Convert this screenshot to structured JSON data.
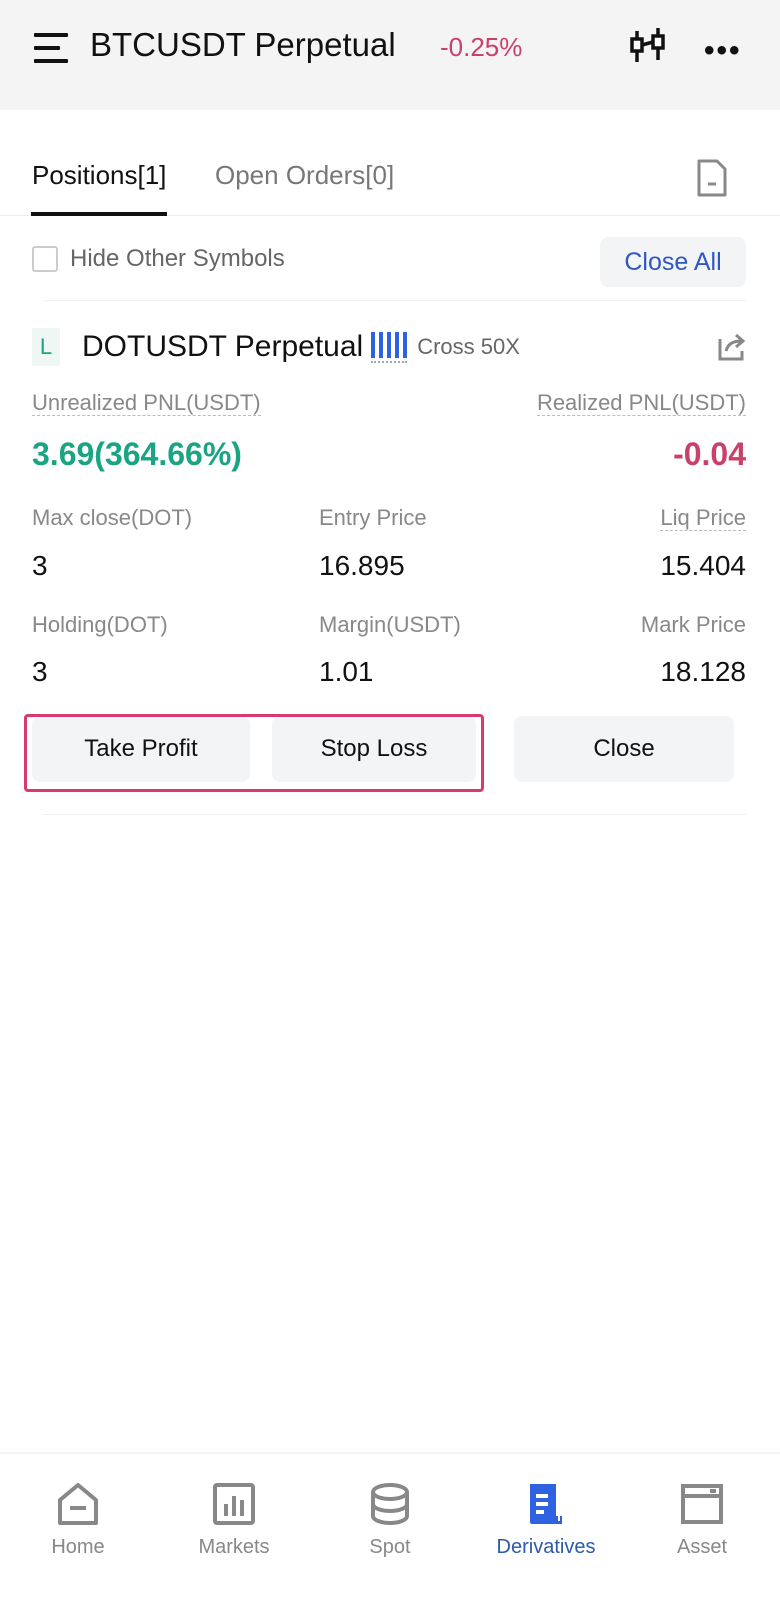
{
  "header": {
    "title": "BTCUSDT Perpetual",
    "change": "-0.25%",
    "icons": [
      "menu-icon",
      "candlestick-icon",
      "more-icon"
    ]
  },
  "tabs": [
    {
      "label": "Positions[1]",
      "active": true
    },
    {
      "label": "Open Orders[0]",
      "active": false
    }
  ],
  "filter": {
    "hide_other_symbols": "Hide Other Symbols",
    "checked": false,
    "close_all": "Close All"
  },
  "position": {
    "side": "L",
    "symbol": "DOTUSDT Perpetual",
    "margin_mode": "Cross 50X",
    "risk_level_bars": 5,
    "unrealized_pnl_label": "Unrealized PNL(USDT)",
    "unrealized_pnl": "3.69(364.66%)",
    "realized_pnl_label": "Realized PNL(USDT)",
    "realized_pnl": "-0.04",
    "max_close_label": "Max close(DOT)",
    "max_close": "3",
    "entry_price_label": "Entry Price",
    "entry_price": "16.895",
    "liq_price_label": "Liq Price",
    "liq_price": "15.404",
    "holding_label": "Holding(DOT)",
    "holding": "3",
    "margin_label": "Margin(USDT)",
    "margin": "1.01",
    "mark_price_label": "Mark Price",
    "mark_price": "18.128",
    "buttons": {
      "take_profit": "Take Profit",
      "stop_loss": "Stop Loss",
      "close": "Close"
    }
  },
  "colors": {
    "green": "#1aa483",
    "red": "#c9416a",
    "accent": "#2f62e0",
    "highlight": "#d63a72"
  },
  "nav": [
    {
      "label": "Home"
    },
    {
      "label": "Markets"
    },
    {
      "label": "Spot"
    },
    {
      "label": "Derivatives",
      "active": true
    },
    {
      "label": "Asset"
    }
  ]
}
